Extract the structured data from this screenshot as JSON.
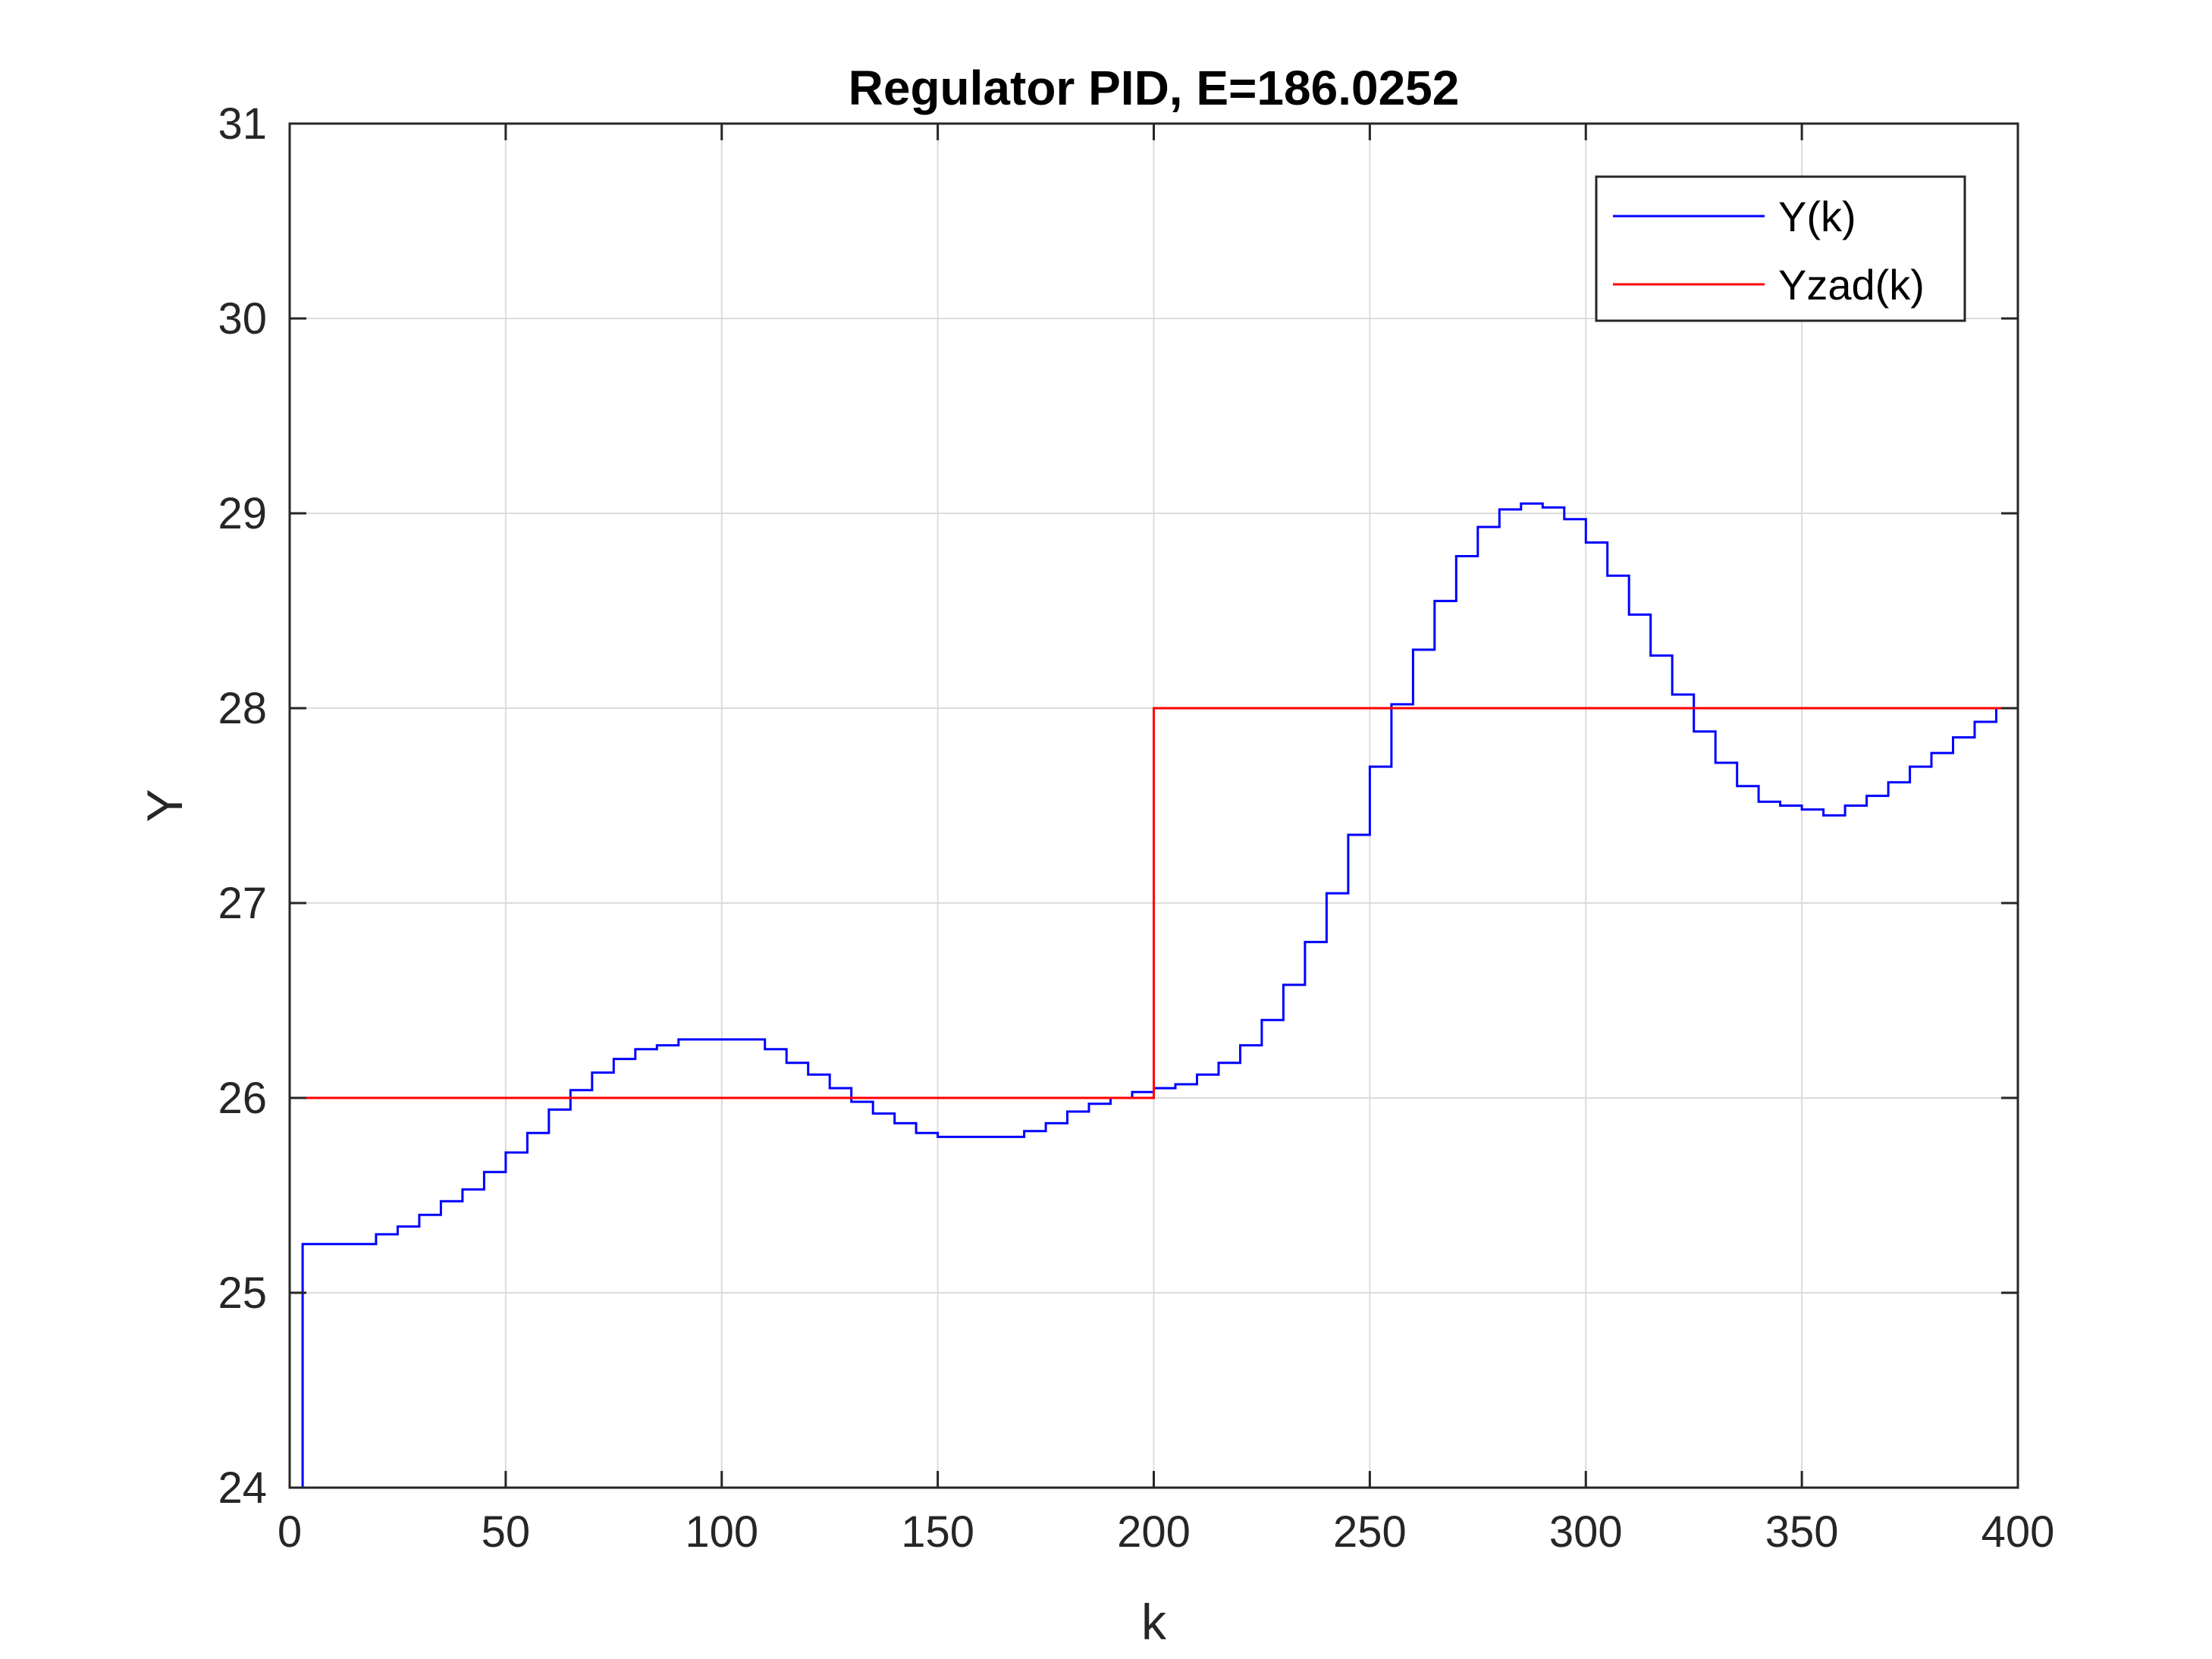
{
  "chart_data": {
    "type": "line",
    "step": true,
    "title": "Regulator PID, E=186.0252",
    "xlabel": "k",
    "ylabel": "Y",
    "xlim": [
      0,
      400
    ],
    "ylim": [
      24,
      31
    ],
    "xticks": [
      0,
      50,
      100,
      150,
      200,
      250,
      300,
      350,
      400
    ],
    "yticks": [
      24,
      25,
      26,
      27,
      28,
      29,
      30,
      31
    ],
    "grid": true,
    "legend_position": "top-right",
    "series": [
      {
        "name": "Y(k)",
        "color": "#0000ff",
        "x": [
          0,
          3,
          20,
          25,
          30,
          35,
          40,
          45,
          50,
          55,
          60,
          65,
          70,
          75,
          80,
          85,
          90,
          95,
          100,
          105,
          110,
          115,
          120,
          125,
          130,
          135,
          140,
          145,
          150,
          155,
          160,
          165,
          170,
          175,
          180,
          185,
          190,
          195,
          200,
          205,
          210,
          215,
          220,
          225,
          230,
          235,
          240,
          245,
          250,
          255,
          260,
          265,
          270,
          275,
          280,
          285,
          290,
          295,
          300,
          305,
          310,
          315,
          320,
          325,
          330,
          335,
          340,
          345,
          350,
          355,
          360,
          365,
          370,
          375,
          380,
          385,
          390,
          395,
          400
        ],
        "values": [
          24.0,
          25.25,
          25.3,
          25.34,
          25.4,
          25.47,
          25.53,
          25.62,
          25.72,
          25.82,
          25.94,
          26.04,
          26.13,
          26.2,
          26.25,
          26.27,
          26.3,
          26.3,
          26.3,
          26.3,
          26.25,
          26.18,
          26.12,
          26.05,
          25.98,
          25.92,
          25.87,
          25.82,
          25.8,
          25.8,
          25.8,
          25.8,
          25.83,
          25.87,
          25.93,
          25.97,
          26.0,
          26.03,
          26.05,
          26.07,
          26.12,
          26.18,
          26.27,
          26.4,
          26.58,
          26.8,
          27.05,
          27.35,
          27.7,
          28.02,
          28.3,
          28.55,
          28.78,
          28.93,
          29.02,
          29.05,
          29.03,
          28.97,
          28.85,
          28.68,
          28.48,
          28.27,
          28.07,
          27.88,
          27.72,
          27.6,
          27.52,
          27.5,
          27.48,
          27.45,
          27.5,
          27.55,
          27.62,
          27.7,
          27.77,
          27.85,
          27.93,
          28.0,
          28.08
        ]
      },
      {
        "name": "Yzad(k)",
        "color": "#ff0000",
        "x": [
          0,
          200,
          400
        ],
        "values": [
          26,
          28,
          28
        ]
      }
    ]
  }
}
